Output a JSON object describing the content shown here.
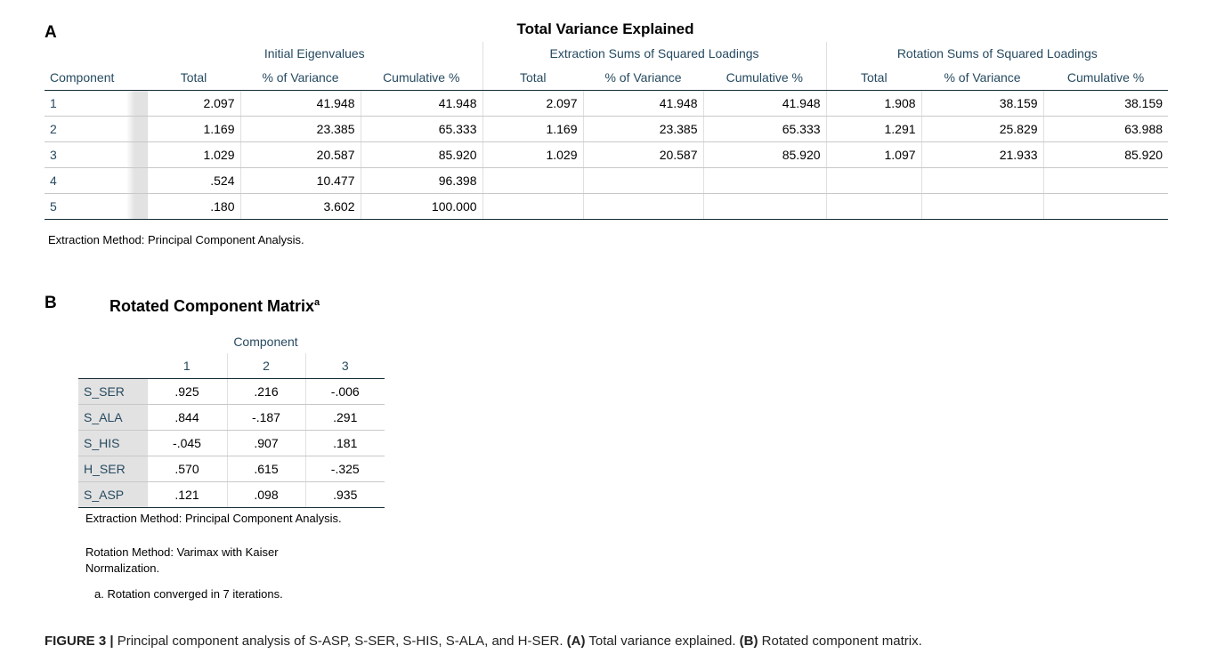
{
  "panel_a": {
    "letter": "A",
    "title": "Total Variance Explained",
    "groups": [
      "Initial Eigenvalues",
      "Extraction Sums of Squared Loadings",
      "Rotation Sums of Squared Loadings"
    ],
    "columns": [
      "Component",
      "Total",
      "% of Variance",
      "Cumulative %",
      "Total",
      "% of Variance",
      "Cumulative %",
      "Total",
      "% of Variance",
      "Cumulative %"
    ],
    "rows": [
      [
        "1",
        "2.097",
        "41.948",
        "41.948",
        "2.097",
        "41.948",
        "41.948",
        "1.908",
        "38.159",
        "38.159"
      ],
      [
        "2",
        "1.169",
        "23.385",
        "65.333",
        "1.169",
        "23.385",
        "65.333",
        "1.291",
        "25.829",
        "63.988"
      ],
      [
        "3",
        "1.029",
        "20.587",
        "85.920",
        "1.029",
        "20.587",
        "85.920",
        "1.097",
        "21.933",
        "85.920"
      ],
      [
        "4",
        ".524",
        "10.477",
        "96.398"
      ],
      [
        "5",
        ".180",
        "3.602",
        "100.000"
      ]
    ],
    "footnote": "Extraction Method: Principal Component Analysis."
  },
  "panel_b": {
    "letter": "B",
    "title": "Rotated Component Matrix",
    "title_sup": "a",
    "group": "Component",
    "columns": [
      "1",
      "2",
      "3"
    ],
    "rows": [
      [
        "S_SER",
        ".925",
        ".216",
        "-.006"
      ],
      [
        "S_ALA",
        ".844",
        "-.187",
        ".291"
      ],
      [
        "S_HIS",
        "-.045",
        ".907",
        ".181"
      ],
      [
        "H_SER",
        ".570",
        ".615",
        "-.325"
      ],
      [
        "S_ASP",
        ".121",
        ".098",
        ".935"
      ]
    ],
    "footnotes": [
      "Extraction Method: Principal Component Analysis.",
      "Rotation Method: Varimax with Kaiser Normalization."
    ],
    "note": "a. Rotation converged in 7 iterations."
  },
  "caption": {
    "label": "FIGURE 3 |",
    "text": "Principal component analysis of S-ASP, S-SER, S-HIS, S-ALA, and H-SER.",
    "a_label": "(A)",
    "a_text": "Total variance explained.",
    "b_label": "(B)",
    "b_text": "Rotated component matrix."
  }
}
